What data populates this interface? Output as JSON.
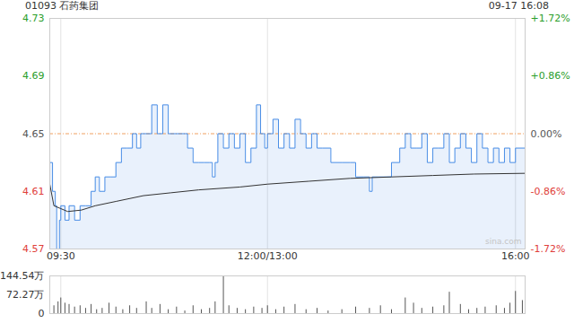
{
  "chart_data": [
    {
      "type": "line",
      "title": "01093 石药集团",
      "subtitle": "09-17 16:08",
      "watermark": "sina.com",
      "previous_close": 4.65,
      "xlim": [
        -8,
        337
      ],
      "xticks": [
        {
          "value": 0,
          "label": "09:30"
        },
        {
          "value": 150,
          "label": "12:00/13:00"
        },
        {
          "value": 330,
          "label": "16:00"
        }
      ],
      "ylim": [
        4.57,
        4.73
      ],
      "yticks": [
        4.73,
        4.69,
        4.65,
        4.61,
        4.57
      ],
      "y2lim": [
        -1.72,
        1.72
      ],
      "y2ticks": [
        {
          "value": 1.72,
          "label": "+1.72%"
        },
        {
          "value": 0.86,
          "label": "+0.86%"
        },
        {
          "value": 0,
          "label": "0.00%"
        },
        {
          "value": -0.86,
          "label": "-0.86%"
        },
        {
          "value": -1.72,
          "label": "-1.72%"
        }
      ],
      "grid": true,
      "series": [
        {
          "type": "area",
          "color": "#4a8ee6",
          "x": [
            -8,
            -6,
            -4,
            -3,
            -1,
            0,
            3,
            6,
            10,
            14,
            18,
            22,
            25,
            28,
            32,
            36,
            40,
            44,
            48,
            52,
            55,
            58,
            62,
            66,
            70,
            74,
            78,
            84,
            88,
            92,
            96,
            100,
            104,
            108,
            110,
            112,
            114,
            118,
            122,
            126,
            130,
            134,
            138,
            142,
            145,
            148,
            150,
            154,
            158,
            162,
            166,
            170,
            174,
            178,
            182,
            186,
            190,
            196,
            204,
            210,
            214,
            220,
            224,
            226,
            230,
            236,
            240,
            246,
            250,
            254,
            258,
            262,
            266,
            270,
            274,
            278,
            282,
            286,
            290,
            294,
            298,
            302,
            306,
            310,
            314,
            318,
            322,
            326,
            330,
            337
          ],
          "values": [
            4.63,
            4.61,
            4.6,
            4.57,
            4.59,
            4.6,
            4.59,
            4.6,
            4.59,
            4.6,
            4.6,
            4.61,
            4.62,
            4.61,
            4.62,
            4.62,
            4.63,
            4.64,
            4.64,
            4.65,
            4.64,
            4.65,
            4.65,
            4.67,
            4.65,
            4.67,
            4.65,
            4.65,
            4.65,
            4.64,
            4.63,
            4.63,
            4.63,
            4.63,
            4.62,
            4.63,
            4.65,
            4.64,
            4.65,
            4.64,
            4.65,
            4.63,
            4.64,
            4.67,
            4.65,
            4.64,
            4.65,
            4.66,
            4.64,
            4.65,
            4.64,
            4.66,
            4.65,
            4.64,
            4.65,
            4.64,
            4.64,
            4.63,
            4.63,
            4.63,
            4.62,
            4.62,
            4.61,
            4.62,
            4.62,
            4.62,
            4.63,
            4.64,
            4.65,
            4.64,
            4.64,
            4.65,
            4.63,
            4.64,
            4.64,
            4.65,
            4.63,
            4.64,
            4.65,
            4.64,
            4.63,
            4.65,
            4.64,
            4.63,
            4.64,
            4.63,
            4.64,
            4.63,
            4.64,
            4.65
          ]
        },
        {
          "type": "line",
          "color": "#333333",
          "x": [
            -8,
            -5,
            0,
            5,
            15,
            25,
            40,
            60,
            80,
            100,
            130,
            150,
            180,
            210,
            240,
            270,
            300,
            337
          ],
          "values": [
            4.615,
            4.6,
            4.598,
            4.596,
            4.597,
            4.6,
            4.603,
            4.607,
            4.609,
            4.611,
            4.613,
            4.615,
            4.617,
            4.619,
            4.62,
            4.621,
            4.622,
            4.6225
          ]
        }
      ]
    },
    {
      "type": "bar",
      "color": "#555555",
      "xlim": [
        -8,
        337
      ],
      "xticks": [
        0,
        150,
        330
      ],
      "grid": true,
      "tick_labels": "y",
      "ylim": [
        0,
        144.54
      ],
      "yticks": [
        {
          "value": 144.54,
          "label": "144.54万"
        },
        {
          "value": 72.27,
          "label": "72.27万"
        },
        0
      ],
      "x": [
        -8,
        -5,
        -2,
        0,
        3,
        6,
        10,
        14,
        18,
        22,
        26,
        30,
        35,
        40,
        45,
        50,
        55,
        62,
        66,
        72,
        78,
        84,
        90,
        96,
        102,
        108,
        112,
        118,
        122,
        128,
        134,
        140,
        146,
        150,
        156,
        162,
        170,
        178,
        186,
        194,
        204,
        214,
        224,
        232,
        240,
        250,
        256,
        262,
        270,
        278,
        282,
        290,
        296,
        302,
        308,
        316,
        322,
        326,
        330,
        335
      ],
      "values": [
        55,
        30,
        45,
        60,
        40,
        35,
        25,
        30,
        20,
        35,
        15,
        20,
        40,
        25,
        15,
        30,
        20,
        45,
        20,
        35,
        15,
        25,
        10,
        30,
        15,
        20,
        45,
        144,
        30,
        20,
        15,
        25,
        20,
        30,
        15,
        25,
        35,
        15,
        20,
        10,
        15,
        25,
        20,
        30,
        15,
        60,
        40,
        20,
        25,
        30,
        82,
        35,
        15,
        20,
        25,
        30,
        20,
        40,
        85,
        50
      ]
    }
  ]
}
